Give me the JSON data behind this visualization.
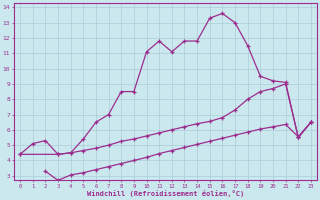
{
  "line1_x": [
    0,
    1,
    2,
    3,
    4,
    5,
    6,
    7,
    8,
    9,
    10,
    11,
    12,
    13,
    14,
    15,
    16,
    17,
    18,
    19,
    20,
    21,
    22,
    23
  ],
  "line1_y": [
    4.4,
    5.1,
    5.3,
    4.4,
    4.5,
    5.4,
    6.5,
    7.0,
    8.5,
    8.5,
    11.1,
    11.8,
    11.1,
    11.8,
    11.8,
    13.3,
    13.6,
    13.0,
    11.5,
    9.5,
    9.2,
    9.1,
    5.5,
    6.5
  ],
  "line2_x": [
    0,
    3,
    4,
    5,
    6,
    7,
    8,
    9,
    10,
    11,
    12,
    13,
    14,
    15,
    16,
    17,
    18,
    19,
    20,
    21,
    22,
    23
  ],
  "line2_y": [
    4.4,
    4.4,
    4.5,
    4.65,
    4.8,
    5.0,
    5.25,
    5.4,
    5.6,
    5.8,
    6.0,
    6.2,
    6.4,
    6.55,
    6.8,
    7.3,
    8.0,
    8.5,
    8.7,
    9.0,
    5.5,
    6.5
  ],
  "line3_x": [
    2,
    3,
    4,
    5,
    6,
    7,
    8,
    9,
    10,
    11,
    12,
    13,
    14,
    15,
    16,
    17,
    18,
    19,
    20,
    21,
    22,
    23
  ],
  "line3_y": [
    3.3,
    2.7,
    3.05,
    3.2,
    3.4,
    3.6,
    3.8,
    4.0,
    4.2,
    4.45,
    4.65,
    4.85,
    5.05,
    5.25,
    5.45,
    5.65,
    5.85,
    6.05,
    6.2,
    6.35,
    5.55,
    6.5
  ],
  "line_color": "#9b2d8e",
  "bg_color": "#cce8ef",
  "grid_color": "#aacdd8",
  "xlabel": "Windchill (Refroidissement éolien,°C)",
  "xlim": [
    -0.5,
    23.5
  ],
  "ylim": [
    2.7,
    14.3
  ],
  "yticks": [
    3,
    4,
    5,
    6,
    7,
    8,
    9,
    10,
    11,
    12,
    13,
    14
  ],
  "xticks": [
    0,
    1,
    2,
    3,
    4,
    5,
    6,
    7,
    8,
    9,
    10,
    11,
    12,
    13,
    14,
    15,
    16,
    17,
    18,
    19,
    20,
    21,
    22,
    23
  ],
  "marker": "+"
}
